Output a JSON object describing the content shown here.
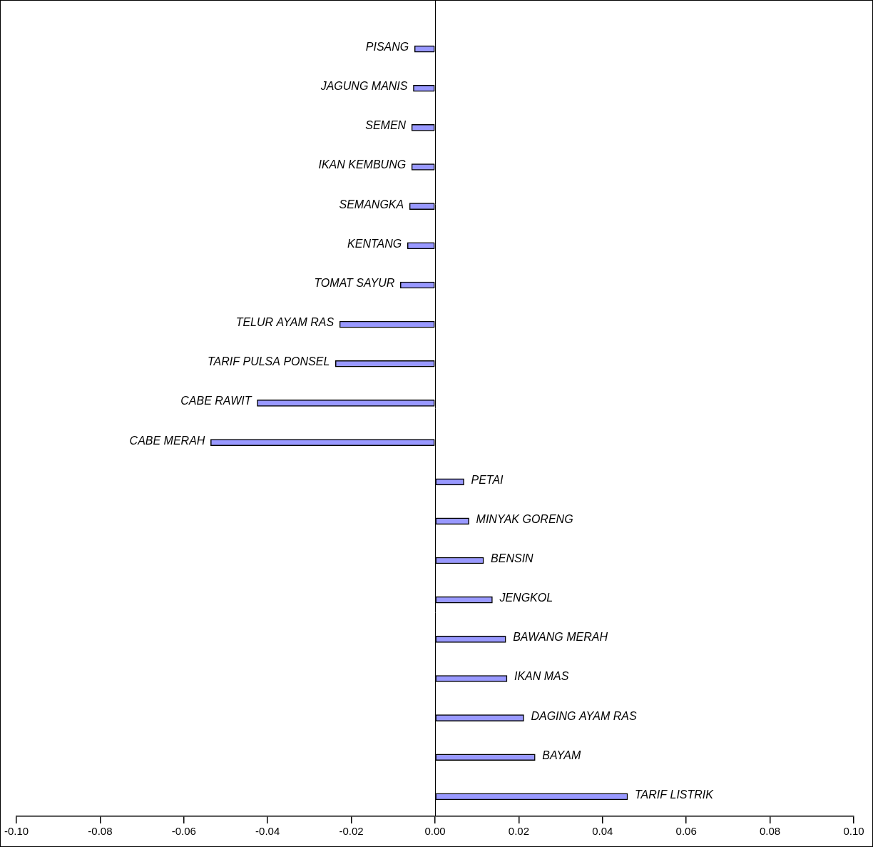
{
  "chart_data": {
    "type": "bar",
    "orientation": "horizontal",
    "categories": [
      "PISANG",
      "JAGUNG MANIS",
      "SEMEN",
      "IKAN KEMBUNG",
      "SEMANGKA",
      "KENTANG",
      "TOMAT SAYUR",
      "TELUR AYAM RAS",
      "TARIF PULSA PONSEL",
      "CABE RAWIT",
      "CABE MERAH",
      "PETAI",
      "MINYAK GORENG",
      "BENSIN",
      "JENGKOL",
      "BAWANG MERAH",
      "IKAN MAS",
      "DAGING AYAM RAS",
      "BAYAM",
      "TARIF LISTRIK"
    ],
    "values": [
      -0.0049,
      -0.0052,
      -0.0056,
      -0.0056,
      -0.0061,
      -0.0066,
      -0.0083,
      -0.0228,
      -0.0238,
      -0.0425,
      -0.0536,
      0.0069,
      0.0081,
      0.0116,
      0.0137,
      0.0169,
      0.0172,
      0.0212,
      0.0239,
      0.046
    ],
    "color": "#9999ff",
    "xlim": [
      -0.1,
      0.1
    ],
    "xticks": [
      {
        "value": -0.1,
        "label": "-0.10"
      },
      {
        "value": -0.08,
        "label": "-0.08"
      },
      {
        "value": -0.06,
        "label": "-0.06"
      },
      {
        "value": -0.04,
        "label": "-0.04"
      },
      {
        "value": -0.02,
        "label": "-0.02"
      },
      {
        "value": 0,
        "label": "0.00"
      },
      {
        "value": 0.02,
        "label": "0.02"
      },
      {
        "value": 0.04,
        "label": "0.04"
      },
      {
        "value": 0.06,
        "label": "0.06"
      },
      {
        "value": 0.08,
        "label": "0.08"
      },
      {
        "value": 0.1,
        "label": "0.10"
      }
    ],
    "grid": false,
    "tick_labels": "x"
  }
}
